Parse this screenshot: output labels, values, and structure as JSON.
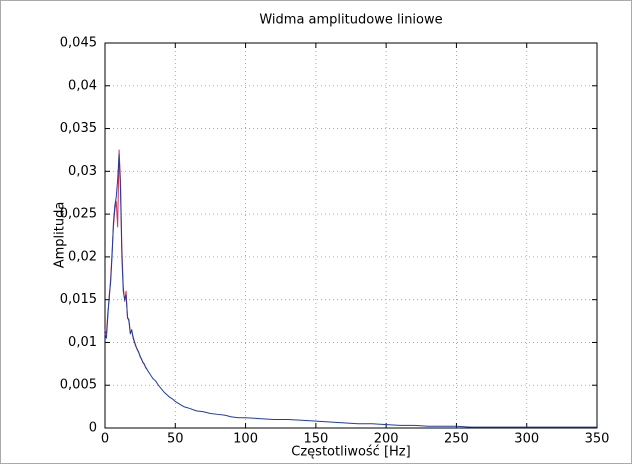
{
  "chart_data": {
    "type": "line",
    "title": "Widma amplitudowe liniowe",
    "x_label": "Częstotliwość [Hz]",
    "y_label": "Amplituda",
    "xlim": [
      0,
      350
    ],
    "ylim": [
      0,
      0.045
    ],
    "xticks": [
      0,
      50,
      100,
      150,
      200,
      250,
      300,
      350
    ],
    "yticks": [
      0,
      {
        "value": 0.005,
        "label": "0,005"
      },
      {
        "value": 0.01,
        "label": "0,01"
      },
      {
        "value": 0.015,
        "label": "0,015"
      },
      {
        "value": 0.02,
        "label": "0,02"
      },
      {
        "value": 0.025,
        "label": "0,025"
      },
      {
        "value": 0.03,
        "label": "0,03"
      },
      {
        "value": 0.035,
        "label": "0,035"
      },
      {
        "value": 0.04,
        "label": "0,04"
      },
      {
        "value": 0.045,
        "label": "0,045"
      }
    ],
    "grid": true,
    "x": [
      0,
      1,
      2,
      3,
      4,
      5,
      6,
      7,
      8,
      9,
      10,
      11,
      12,
      13,
      14,
      15,
      16,
      17,
      18,
      19,
      20,
      21,
      22,
      23,
      24,
      25,
      26,
      27,
      28,
      29,
      30,
      32,
      34,
      36,
      38,
      40,
      42,
      44,
      46,
      48,
      50,
      52,
      54,
      56,
      58,
      60,
      65,
      70,
      75,
      80,
      85,
      90,
      95,
      100,
      110,
      120,
      130,
      140,
      150,
      160,
      170,
      180,
      190,
      200,
      210,
      220,
      230,
      240,
      250,
      260,
      270,
      280,
      290,
      300,
      310,
      320,
      330,
      340,
      350
    ],
    "series": [
      {
        "color": "#d0305a",
        "values": [
          0.0115,
          0.011,
          0.0135,
          0.015,
          0.0175,
          0.0205,
          0.0235,
          0.0255,
          0.0265,
          0.0235,
          0.0325,
          0.029,
          0.021,
          0.0165,
          0.0148,
          0.016,
          0.0128,
          0.0127,
          0.0112,
          0.0113,
          0.0107,
          0.0101,
          0.0096,
          0.0091,
          0.0089,
          0.0083,
          0.0081,
          0.0076,
          0.0075,
          0.007,
          0.0069,
          null,
          null,
          null,
          null,
          null,
          null,
          null,
          null,
          null,
          null,
          null,
          null,
          null,
          null,
          null,
          null,
          null,
          null,
          null,
          null,
          null,
          null,
          null,
          null,
          null,
          null,
          null,
          null,
          null,
          null,
          null,
          null,
          null,
          null,
          null,
          null,
          null,
          null,
          null,
          null,
          null,
          null,
          null,
          null,
          null,
          null,
          null,
          null
        ]
      },
      {
        "color": "#1f3d9e",
        "values": [
          0.011,
          0.0105,
          0.013,
          0.0155,
          0.017,
          0.02,
          0.024,
          0.026,
          0.027,
          0.029,
          0.032,
          0.028,
          0.02,
          0.016,
          0.015,
          0.0155,
          0.013,
          0.0125,
          0.011,
          0.0115,
          0.0105,
          0.01,
          0.0095,
          0.0092,
          0.0088,
          0.0084,
          0.008,
          0.0077,
          0.0074,
          0.0071,
          0.0068,
          0.0063,
          0.0058,
          0.0055,
          0.005,
          0.0046,
          0.0042,
          0.0039,
          0.0036,
          0.0034,
          0.0031,
          0.0029,
          0.0027,
          0.0025,
          0.0024,
          0.0023,
          0.002,
          0.0019,
          0.0017,
          0.0016,
          0.0015,
          0.0013,
          0.0012,
          0.0012,
          0.0011,
          0.001,
          0.001,
          0.0009,
          0.0008,
          0.0007,
          0.0006,
          0.0005,
          0.0005,
          0.0004,
          0.0003,
          0.0003,
          0.0002,
          0.0002,
          0.0002,
          0.0001,
          0.0001,
          0.0001,
          0.0001,
          0.0001,
          0.0001,
          0.0001,
          0.0001,
          0.0001,
          0.0001
        ]
      }
    ]
  }
}
